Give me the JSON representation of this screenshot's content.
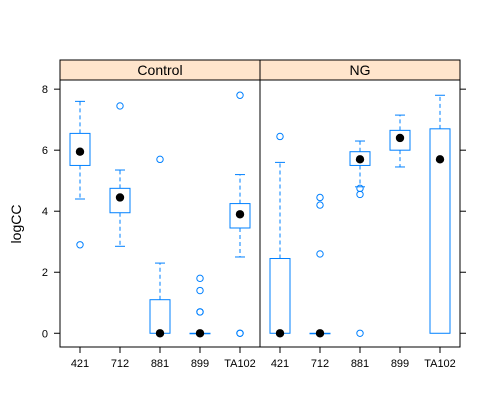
{
  "colors": {
    "strip": "#ffe5cc",
    "box": "#0080ff",
    "median": "#000000",
    "frame": "#000000"
  },
  "chart_data": {
    "type": "boxplot",
    "ylabel": "logCC",
    "ylim": [
      -0.45,
      8.3
    ],
    "yticks": [
      "0",
      "2",
      "4",
      "6",
      "8"
    ],
    "categories": [
      "421",
      "712",
      "881",
      "899",
      "TA102"
    ],
    "panels": [
      {
        "name": "Control",
        "boxes": [
          {
            "category": "421",
            "whisker_low": 4.4,
            "q1": 5.5,
            "median": 5.95,
            "q3": 6.55,
            "whisker_high": 7.6,
            "outliers": [
              2.9
            ]
          },
          {
            "category": "712",
            "whisker_low": 2.85,
            "q1": 3.95,
            "median": 4.45,
            "q3": 4.75,
            "whisker_high": 5.35,
            "outliers": [
              7.45
            ]
          },
          {
            "category": "881",
            "whisker_low": 0,
            "q1": 0,
            "median": 0,
            "q3": 1.1,
            "whisker_high": 2.3,
            "outliers": [
              5.7
            ]
          },
          {
            "category": "899",
            "whisker_low": 0,
            "q1": 0,
            "median": 0,
            "q3": 0,
            "whisker_high": 0,
            "outliers": [
              0.7,
              0.7,
              1.4,
              1.8
            ]
          },
          {
            "category": "TA102",
            "whisker_low": 2.5,
            "q1": 3.45,
            "median": 3.9,
            "q3": 4.25,
            "whisker_high": 5.2,
            "outliers": [
              7.8,
              0,
              0
            ]
          }
        ]
      },
      {
        "name": "NG",
        "boxes": [
          {
            "category": "421",
            "whisker_low": 0,
            "q1": 0,
            "median": 0,
            "q3": 2.45,
            "whisker_high": 5.6,
            "outliers": [
              6.45
            ]
          },
          {
            "category": "712",
            "whisker_low": 0,
            "q1": 0,
            "median": 0,
            "q3": 0,
            "whisker_high": 0,
            "outliers": [
              2.6,
              4.2,
              4.45
            ]
          },
          {
            "category": "881",
            "whisker_low": 4.8,
            "q1": 5.5,
            "median": 5.7,
            "q3": 5.95,
            "whisker_high": 6.3,
            "outliers": [
              4.55,
              4.75,
              0
            ]
          },
          {
            "category": "899",
            "whisker_low": 5.45,
            "q1": 6.0,
            "median": 6.4,
            "q3": 6.65,
            "whisker_high": 7.15,
            "outliers": []
          },
          {
            "category": "TA102",
            "whisker_low": 0,
            "q1": 0,
            "median": 5.7,
            "q3": 6.7,
            "whisker_high": 7.8,
            "outliers": []
          }
        ]
      }
    ]
  }
}
